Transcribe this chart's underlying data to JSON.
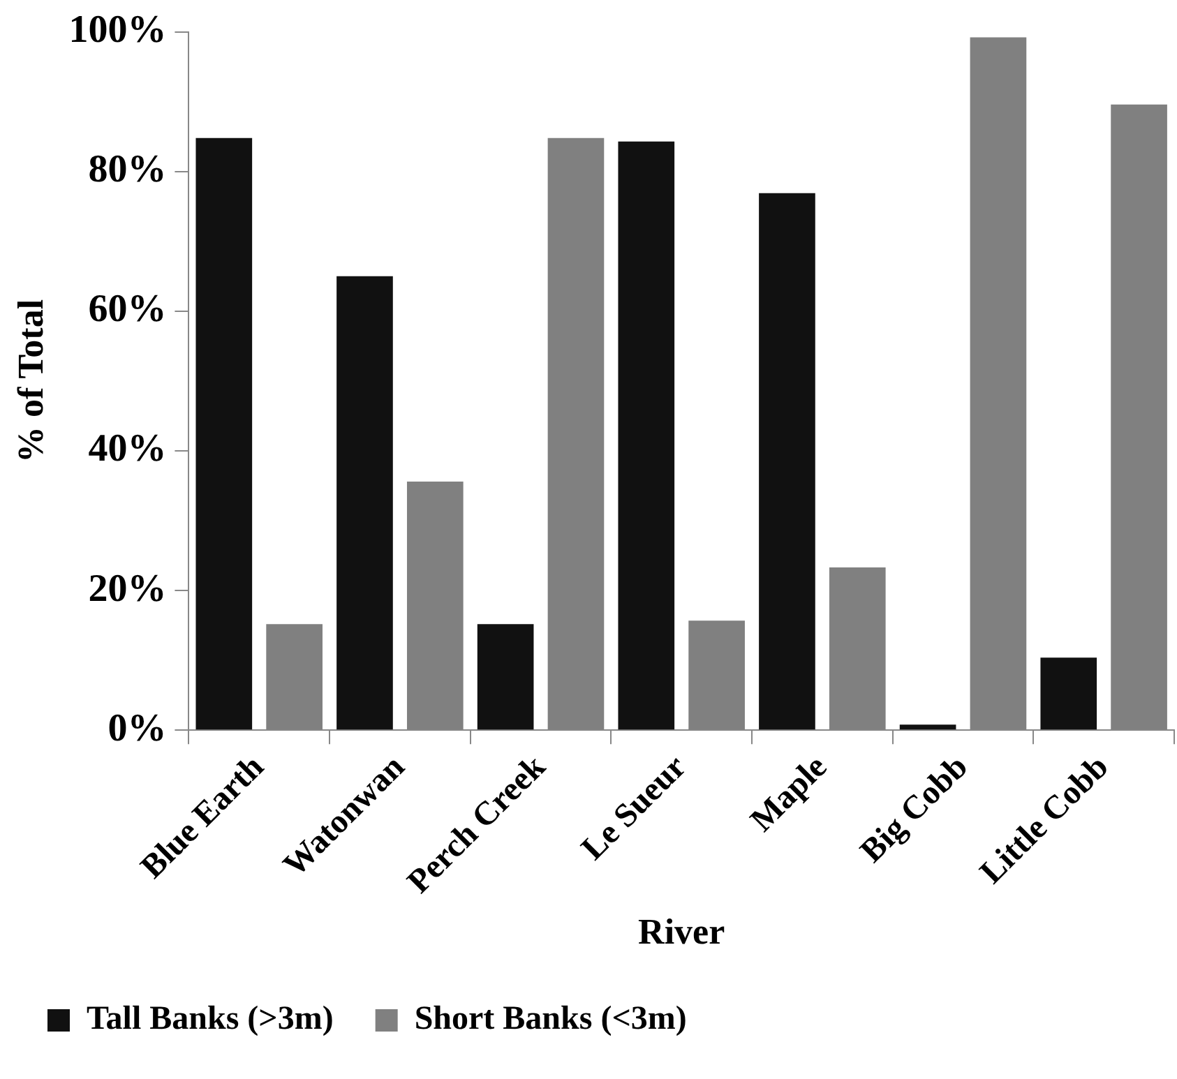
{
  "chart_data": {
    "type": "bar",
    "xlabel": "River",
    "ylabel": "% of Total",
    "categories": [
      "Blue Earth",
      "Watonwan",
      "Perch Creek",
      "Le Sueur",
      "Maple",
      "Big Cobb",
      "Little Cobb"
    ],
    "series": [
      {
        "name": "Tall Banks (>3m)",
        "color": "#111111",
        "values": [
          84.8,
          65.0,
          15.2,
          84.3,
          76.9,
          0.8,
          10.4
        ]
      },
      {
        "name": "Short Banks (<3m)",
        "color": "#808080",
        "values": [
          15.2,
          35.6,
          84.8,
          15.7,
          23.3,
          99.2,
          89.6
        ]
      }
    ],
    "ylim": [
      0,
      100
    ],
    "yticks": [
      {
        "value": 0,
        "label": "0%"
      },
      {
        "value": 20,
        "label": "20%"
      },
      {
        "value": 40,
        "label": "40%"
      },
      {
        "value": 60,
        "label": "60%"
      },
      {
        "value": 80,
        "label": "80%"
      },
      {
        "value": 100,
        "label": "100%"
      }
    ],
    "grid": false,
    "legend": "bottom left"
  }
}
